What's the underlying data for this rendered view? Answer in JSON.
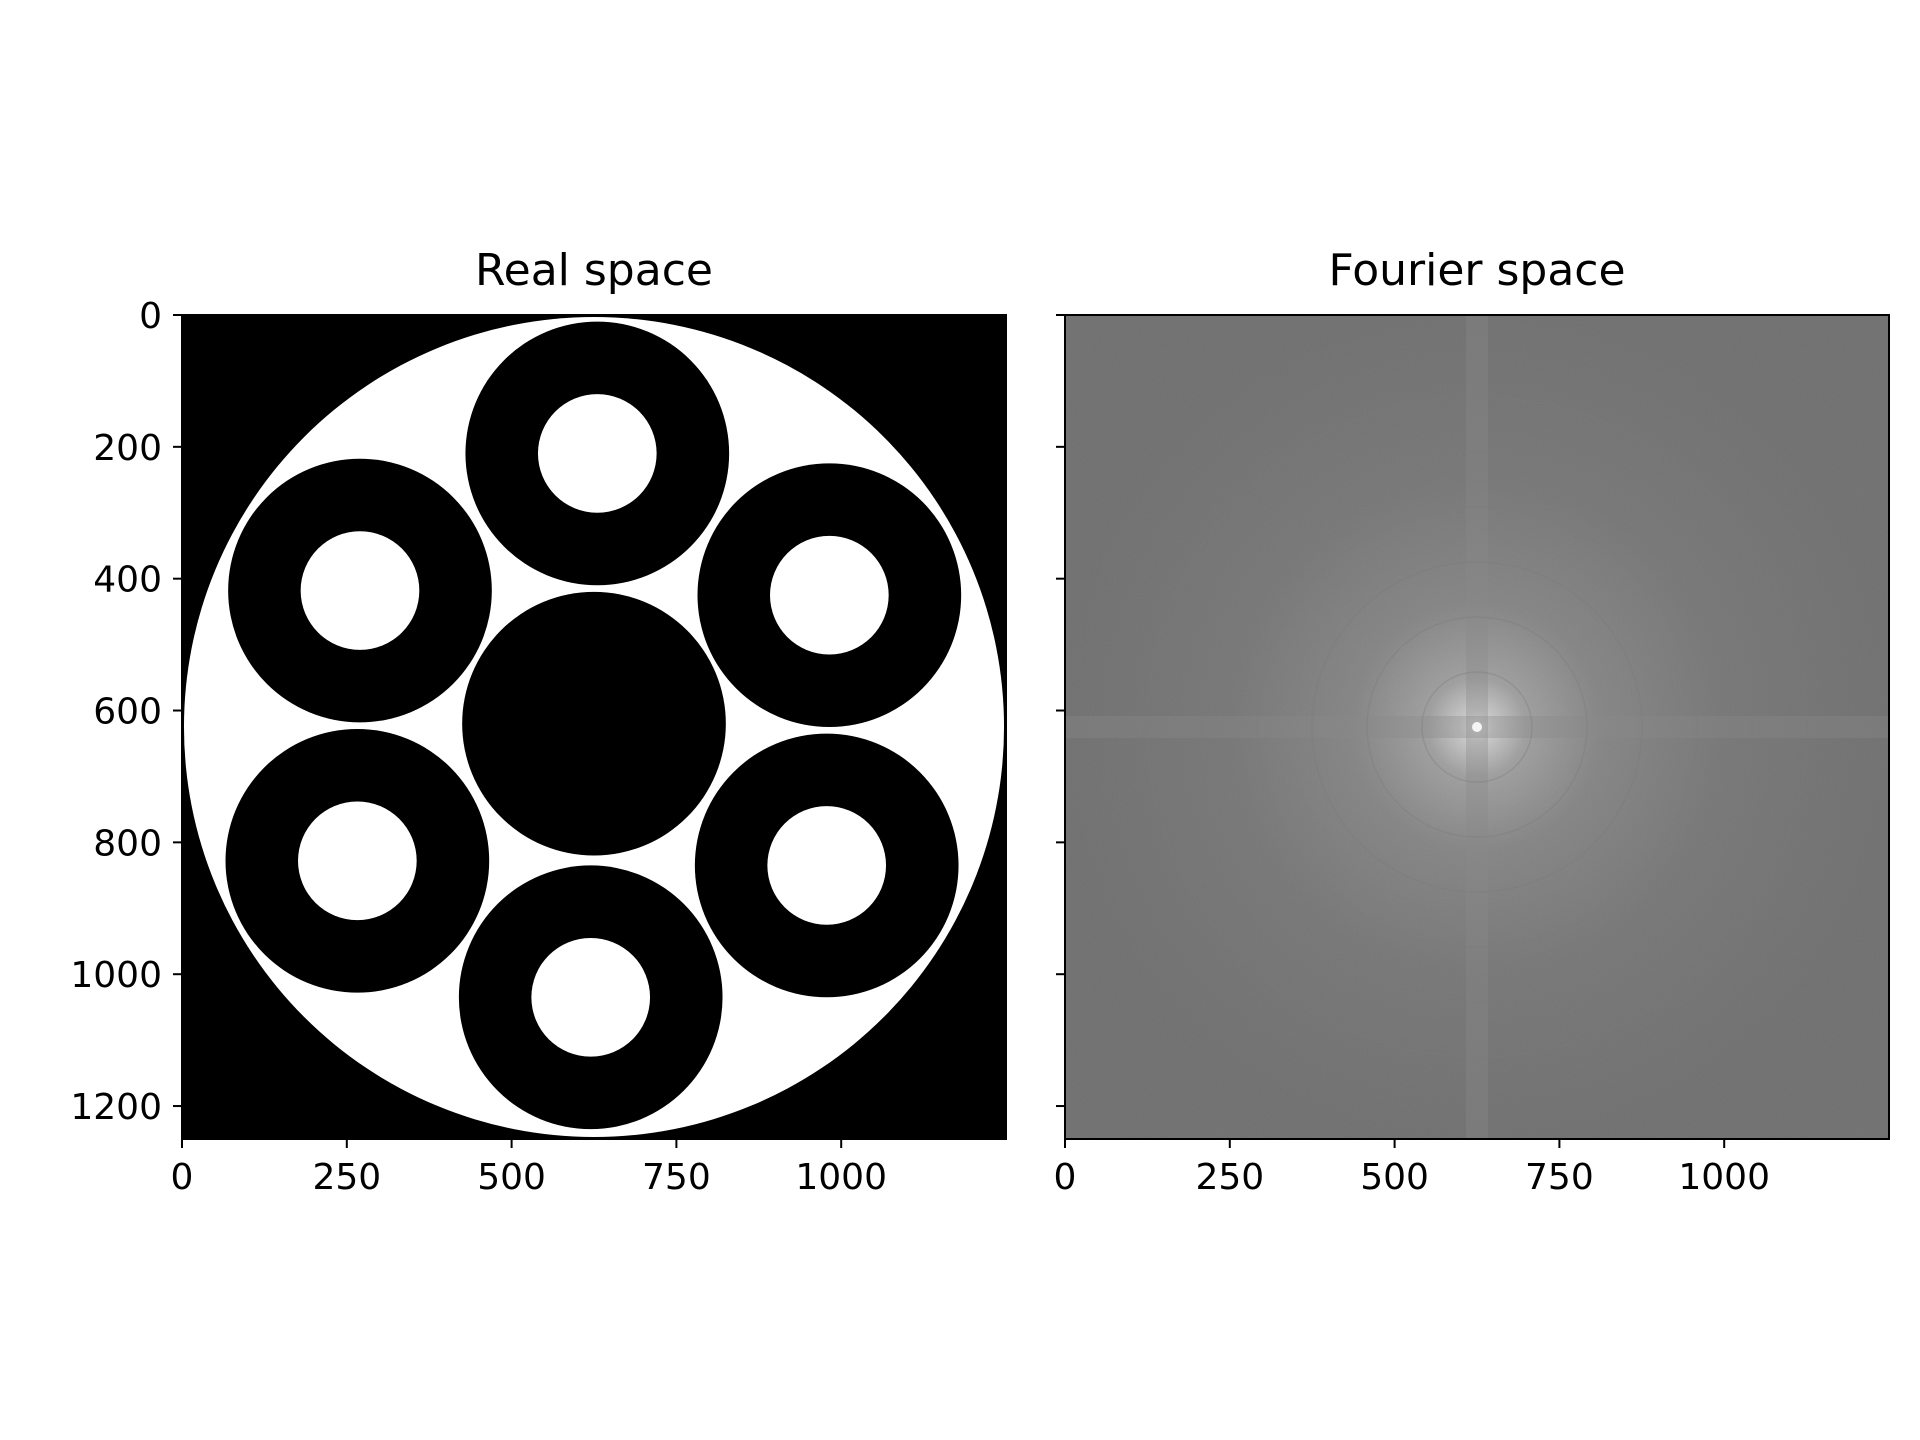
{
  "colors": {
    "background": "#ffffff",
    "mask_dark": "#000000",
    "mask_light": "#ffffff",
    "spectrum_base": "#6b6b6b",
    "axis": "#000000"
  },
  "chart_data": [
    {
      "type": "heatmap",
      "title": "Real space",
      "xlim": [
        0,
        1250
      ],
      "ylim": [
        1250,
        0
      ],
      "x_ticks": [
        0,
        250,
        500,
        750,
        1000
      ],
      "y_ticks": [
        0,
        200,
        400,
        600,
        800,
        1000,
        1200
      ],
      "x_tick_labels": [
        "0",
        "250",
        "500",
        "750",
        "1000"
      ],
      "y_tick_labels": [
        "0",
        "200",
        "400",
        "600",
        "800",
        "1000",
        "1200"
      ],
      "colormap": "gray",
      "description_of_values": {
        "outer_disk": {
          "cx": 625,
          "cy": 625,
          "r": 622,
          "value": 1
        },
        "center_disk": {
          "cx": 625,
          "cy": 620,
          "r": 200,
          "value": 0
        },
        "rings": [
          {
            "cx": 630,
            "cy": 210,
            "r_outer": 200,
            "r_inner": 90
          },
          {
            "cx": 270,
            "cy": 418,
            "r_outer": 200,
            "r_inner": 90
          },
          {
            "cx": 982,
            "cy": 425,
            "r_outer": 200,
            "r_inner": 90
          },
          {
            "cx": 266,
            "cy": 828,
            "r_outer": 200,
            "r_inner": 90
          },
          {
            "cx": 978,
            "cy": 835,
            "r_outer": 200,
            "r_inner": 90
          },
          {
            "cx": 620,
            "cy": 1035,
            "r_outer": 200,
            "r_inner": 90
          }
        ]
      }
    },
    {
      "type": "heatmap",
      "title": "Fourier space",
      "xlim": [
        0,
        1250
      ],
      "ylim": [
        1250,
        0
      ],
      "x_ticks": [
        0,
        250,
        500,
        750,
        1000
      ],
      "y_ticks": [
        0,
        200,
        400,
        600,
        800,
        1000,
        1200
      ],
      "x_tick_labels": [
        "0",
        "250",
        "500",
        "750",
        "1000"
      ],
      "y_tick_labels": [],
      "colormap": "gray",
      "peak": {
        "x": 625,
        "y": 625
      }
    }
  ]
}
